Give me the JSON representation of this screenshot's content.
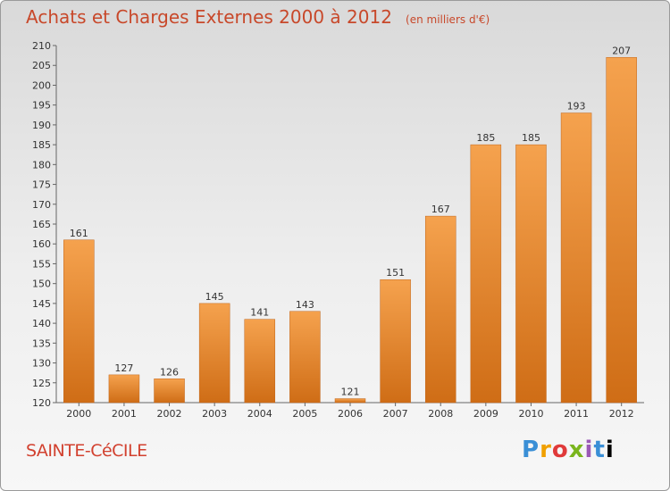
{
  "header": {
    "title": "Achats et Charges Externes 2000 à 2012",
    "unit": "(en milliers d'€)"
  },
  "footer": {
    "commune": "SAINTE-CéCILE",
    "logo": "Proxiti"
  },
  "colors": {
    "bar_light": "#f5a24e",
    "bar_dark": "#cf6d16",
    "title": "#c8482a",
    "commune": "#d2412f"
  },
  "chart_data": {
    "type": "bar",
    "categories": [
      "2000",
      "2001",
      "2002",
      "2003",
      "2004",
      "2005",
      "2006",
      "2007",
      "2008",
      "2009",
      "2010",
      "2011",
      "2012"
    ],
    "values": [
      161,
      127,
      126,
      145,
      141,
      143,
      121,
      151,
      167,
      185,
      185,
      193,
      207
    ],
    "title": "Achats et Charges Externes 2000 à 2012",
    "ylim": [
      120,
      210
    ],
    "ytick_step": 5,
    "grid": false,
    "data_labels": true
  }
}
